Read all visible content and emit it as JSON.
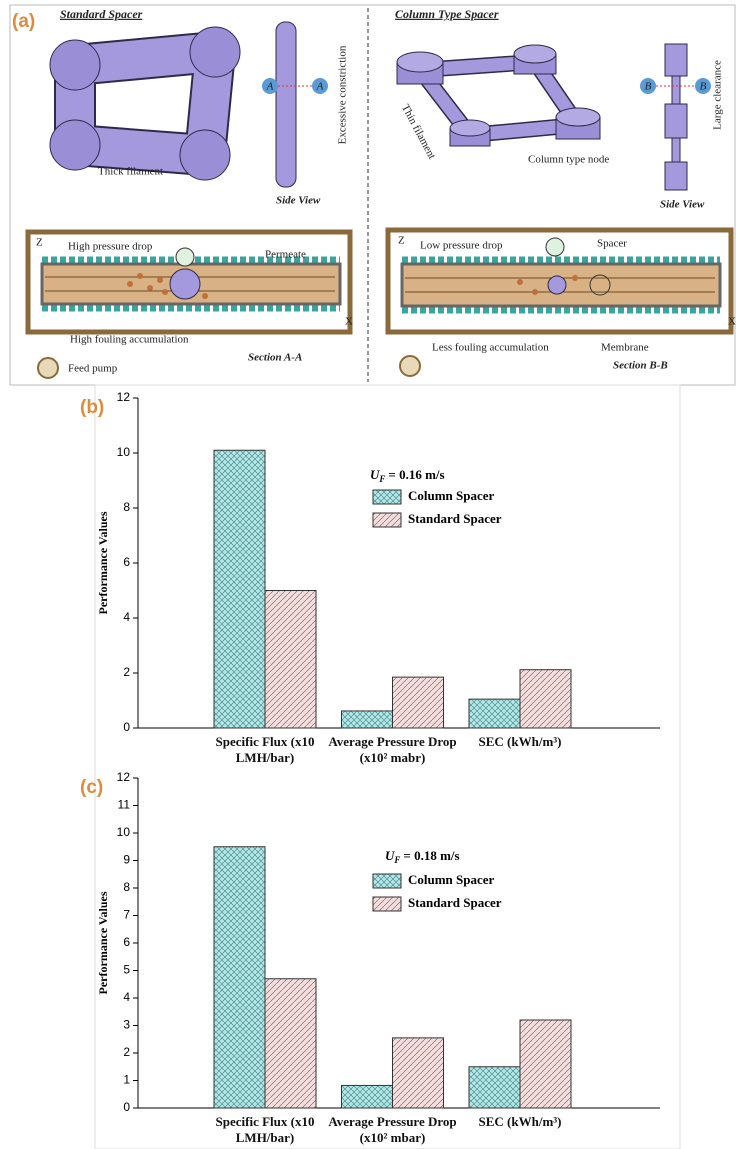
{
  "panel_a": {
    "label": "(a)",
    "standard": {
      "title": "Standard Spacer",
      "filament": "Thick filament",
      "side_view": "Side View",
      "constriction": "Excessive constriction",
      "marker": "A",
      "pressure": "High pressure drop",
      "permeate": "Permeate",
      "fouling": "High fouling accumulation",
      "section": "Section A-A",
      "pump": "Feed pump",
      "z_axis": "Z",
      "x_axis": "X"
    },
    "column": {
      "title": "Column Type Spacer",
      "filament": "Thin filament",
      "node": "Column type node",
      "side_view": "Side View",
      "clearance": "Large clearance",
      "marker": "B",
      "pressure": "Low pressure drop",
      "spacer": "Spacer",
      "fouling": "Less fouling accumulation",
      "membrane": "Membrane",
      "section": "Section B-B",
      "z_axis": "Z",
      "x_axis": "X"
    }
  },
  "chart_data": [
    {
      "type": "bar",
      "label": "(b)",
      "y_label": "Performance Values",
      "annotation": {
        "symbol": "U",
        "subscript": "F",
        "text": "= 0.16 m/s"
      },
      "categories": [
        "Specific Flux (x10 LMH/bar)",
        "Average Pressure Drop (x10² mabr)",
        "SEC (kWh/m³)"
      ],
      "series": [
        {
          "name": "Column Spacer",
          "color": "#b4e6e6",
          "values": [
            10.1,
            0.62,
            1.05
          ]
        },
        {
          "name": "Standard Spacer",
          "color": "#f3dede",
          "values": [
            5.0,
            1.85,
            2.12
          ]
        }
      ],
      "ylim": [
        0,
        12
      ],
      "yticks": [
        0,
        2,
        4,
        6,
        8,
        10,
        12
      ]
    },
    {
      "type": "bar",
      "label": "(c)",
      "y_label": "Performance Values",
      "annotation": {
        "symbol": "U",
        "subscript": "F",
        "text": "= 0.18 m/s"
      },
      "categories": [
        "Specific Flux (x10 LMH/bar)",
        "Average Pressure Drop (x10² mbar)",
        "SEC (kWh/m³)"
      ],
      "series": [
        {
          "name": "Column Spacer",
          "color": "#b4e6e6",
          "values": [
            9.5,
            0.82,
            1.5
          ]
        },
        {
          "name": "Standard Spacer",
          "color": "#f3dede",
          "values": [
            4.7,
            2.55,
            3.2
          ]
        }
      ],
      "ylim": [
        0,
        12
      ],
      "yticks": [
        0,
        1,
        2,
        3,
        4,
        5,
        6,
        7,
        8,
        9,
        10,
        11,
        12
      ]
    }
  ]
}
